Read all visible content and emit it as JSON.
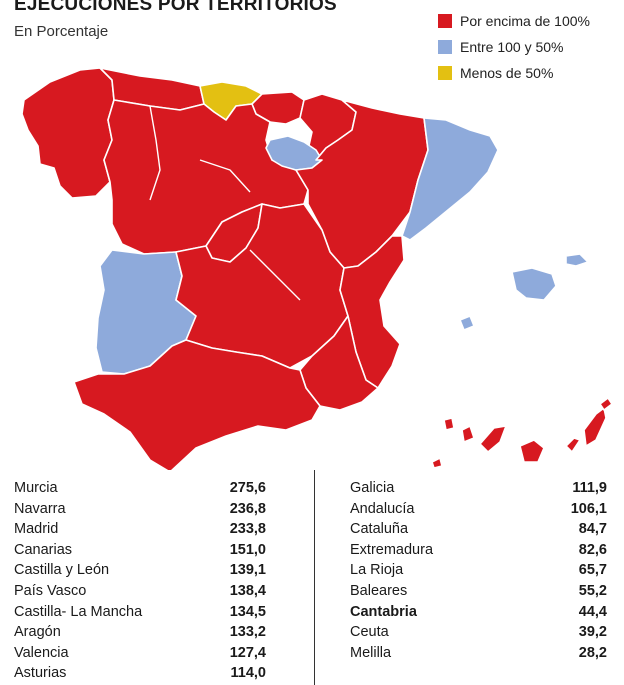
{
  "title": "EJECUCIONES POR TERRITORIOS",
  "subtitle": "En Porcentaje",
  "colors": {
    "high": "#d71920",
    "mid": "#8eaadb",
    "low": "#e3c012",
    "border": "#ffffff"
  },
  "legend": [
    {
      "label": "Por encima de 100%",
      "color": "#d71920"
    },
    {
      "label": "Entre 100 y 50%",
      "color": "#8eaadb"
    },
    {
      "label": "Menos de 50%",
      "color": "#e3c012"
    }
  ],
  "table_left": [
    {
      "region": "Murcia",
      "value": "275,6"
    },
    {
      "region": "Navarra",
      "value": "236,8"
    },
    {
      "region": "Madrid",
      "value": "233,8"
    },
    {
      "region": "Canarias",
      "value": "151,0"
    },
    {
      "region": "Castilla y León",
      "value": "139,1"
    },
    {
      "region": "País Vasco",
      "value": "138,4"
    },
    {
      "region": "Castilla- La Mancha",
      "value": "134,5"
    },
    {
      "region": "Aragón",
      "value": "133,2"
    },
    {
      "region": "Valencia",
      "value": "127,4"
    },
    {
      "region": "Asturias",
      "value": "114,0"
    }
  ],
  "table_right": [
    {
      "region": "Galicia",
      "value": "111,9"
    },
    {
      "region": "Andalucía",
      "value": "106,1"
    },
    {
      "region": "Cataluña",
      "value": "84,7"
    },
    {
      "region": "Extremadura",
      "value": "82,6"
    },
    {
      "region": "La Rioja",
      "value": "65,7"
    },
    {
      "region": "Baleares",
      "value": "55,2"
    },
    {
      "region": "Cantabria",
      "value": "44,4"
    },
    {
      "region": "Ceuta",
      "value": "39,2"
    },
    {
      "region": "Melilla",
      "value": "28,2"
    }
  ]
}
